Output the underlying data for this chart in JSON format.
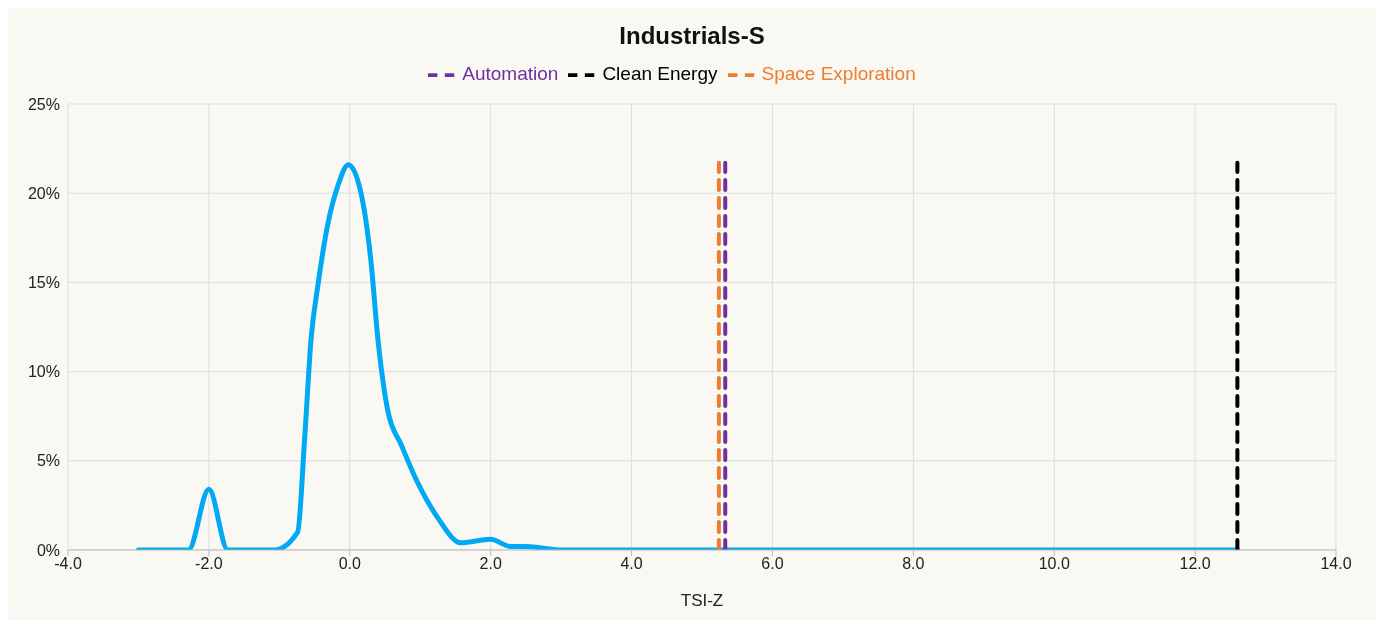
{
  "chart_data": {
    "type": "line",
    "title": "Industrials-S",
    "xlabel": "TSI-Z",
    "xlim": [
      -4,
      14
    ],
    "xticks": [
      {
        "value": -4,
        "label": "-4.0"
      },
      {
        "value": -2,
        "label": "-2.0"
      },
      {
        "value": 0,
        "label": "0.0"
      },
      {
        "value": 2,
        "label": "2.0"
      },
      {
        "value": 4,
        "label": "4.0"
      },
      {
        "value": 6,
        "label": "6.0"
      },
      {
        "value": 8,
        "label": "8.0"
      },
      {
        "value": 10,
        "label": "10.0"
      },
      {
        "value": 12,
        "label": "12.0"
      },
      {
        "value": 14,
        "label": "14.0"
      }
    ],
    "ylim": [
      0,
      25
    ],
    "yticks": [
      {
        "value": 0,
        "label": "0%"
      },
      {
        "value": 5,
        "label": "5%"
      },
      {
        "value": 10,
        "label": "10%"
      },
      {
        "value": 15,
        "label": "15%"
      },
      {
        "value": 20,
        "label": "20%"
      },
      {
        "value": 25,
        "label": "25%"
      }
    ],
    "grid": true,
    "legend": "top",
    "series": [
      {
        "color": "#00a9f4",
        "line_style": "solid",
        "x": [
          -3.0,
          -2.5,
          -2.29,
          -2.0,
          -1.73,
          -1.49,
          -1.07,
          -0.74,
          -0.64,
          -0.55,
          -0.45,
          -0.31,
          -0.17,
          -0.02,
          0.16,
          0.3,
          0.4,
          0.54,
          0.73,
          0.96,
          1.25,
          1.58,
          2.0,
          2.28,
          2.5,
          3.0,
          6.0,
          9.0,
          12.6
        ],
        "values": [
          0,
          0,
          0,
          3.4,
          0,
          0,
          0,
          1.0,
          6.3,
          11.8,
          14.9,
          18.3,
          20.4,
          21.6,
          20.0,
          16.2,
          11.8,
          7.8,
          5.9,
          3.8,
          1.8,
          0.4,
          0.6,
          0.2,
          0.2,
          0,
          0,
          0,
          0
        ]
      },
      {
        "name": "Clean Energy",
        "color": "#000000",
        "line_style": "dashed",
        "x": [
          12.6,
          12.6
        ],
        "values": [
          0,
          21.7
        ]
      },
      {
        "name": "Automation",
        "color": "#7030a0",
        "line_style": "dashed",
        "x": [
          5.33,
          5.33
        ],
        "values": [
          0,
          21.7
        ]
      },
      {
        "name": "Space Exploration",
        "color": "#ed7d31",
        "line_style": "dashed",
        "x": [
          5.24,
          5.24
        ],
        "values": [
          0,
          21.7
        ]
      }
    ]
  }
}
